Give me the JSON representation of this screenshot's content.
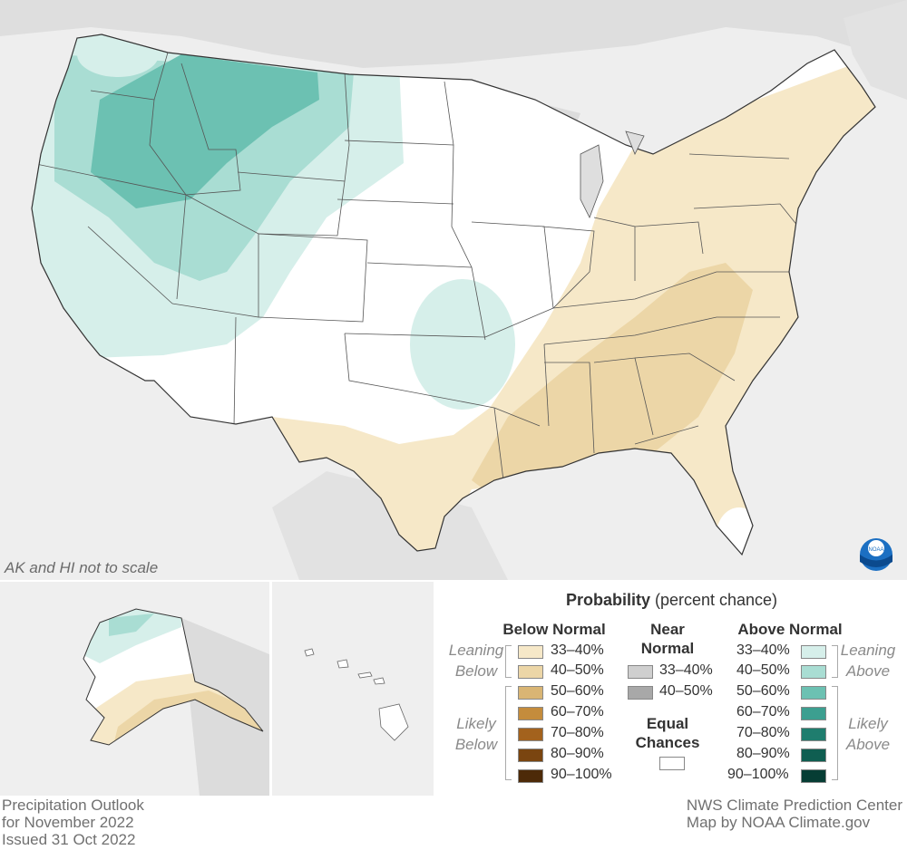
{
  "map": {
    "note": "AK and HI not to scale",
    "logo_text": "NOAA"
  },
  "legend": {
    "title_bold": "Probability",
    "title_rest": " (percent chance)",
    "below": {
      "header": "Below Normal",
      "leaning_label": [
        "Leaning",
        "Below"
      ],
      "likely_label": [
        "Likely",
        "Below"
      ],
      "items": [
        {
          "label": "33–40%",
          "color": "#f6e8c8"
        },
        {
          "label": "40–50%",
          "color": "#ecd6a7"
        },
        {
          "label": "50–60%",
          "color": "#d9b574"
        },
        {
          "label": "60–70%",
          "color": "#c48c3c"
        },
        {
          "label": "70–80%",
          "color": "#a3621d"
        },
        {
          "label": "80–90%",
          "color": "#7a4510"
        },
        {
          "label": "90–100%",
          "color": "#4d2a08"
        }
      ]
    },
    "near": {
      "header": [
        "Near",
        "Normal"
      ],
      "items": [
        {
          "label": "33–40%",
          "color": "#cfcfcf"
        },
        {
          "label": "40–50%",
          "color": "#a8a8a8"
        }
      ],
      "equal_header": [
        "Equal",
        "Chances"
      ],
      "equal_color": "#ffffff"
    },
    "above": {
      "header": "Above Normal",
      "leaning_label": [
        "Leaning",
        "Above"
      ],
      "likely_label": [
        "Likely",
        "Above"
      ],
      "items": [
        {
          "label": "33–40%",
          "color": "#d6efea"
        },
        {
          "label": "40–50%",
          "color": "#a9ddd3"
        },
        {
          "label": "50–60%",
          "color": "#6cc1b2"
        },
        {
          "label": "60–70%",
          "color": "#3c9f90"
        },
        {
          "label": "70–80%",
          "color": "#1f7d6e"
        },
        {
          "label": "80–90%",
          "color": "#0f5e51"
        },
        {
          "label": "90–100%",
          "color": "#063d34"
        }
      ]
    }
  },
  "footer": {
    "left": [
      "Precipitation Outlook",
      "for November 2022",
      "Issued 31 Oct 2022"
    ],
    "right": [
      "NWS Climate Prediction Center",
      "Map by NOAA Climate.gov"
    ]
  }
}
